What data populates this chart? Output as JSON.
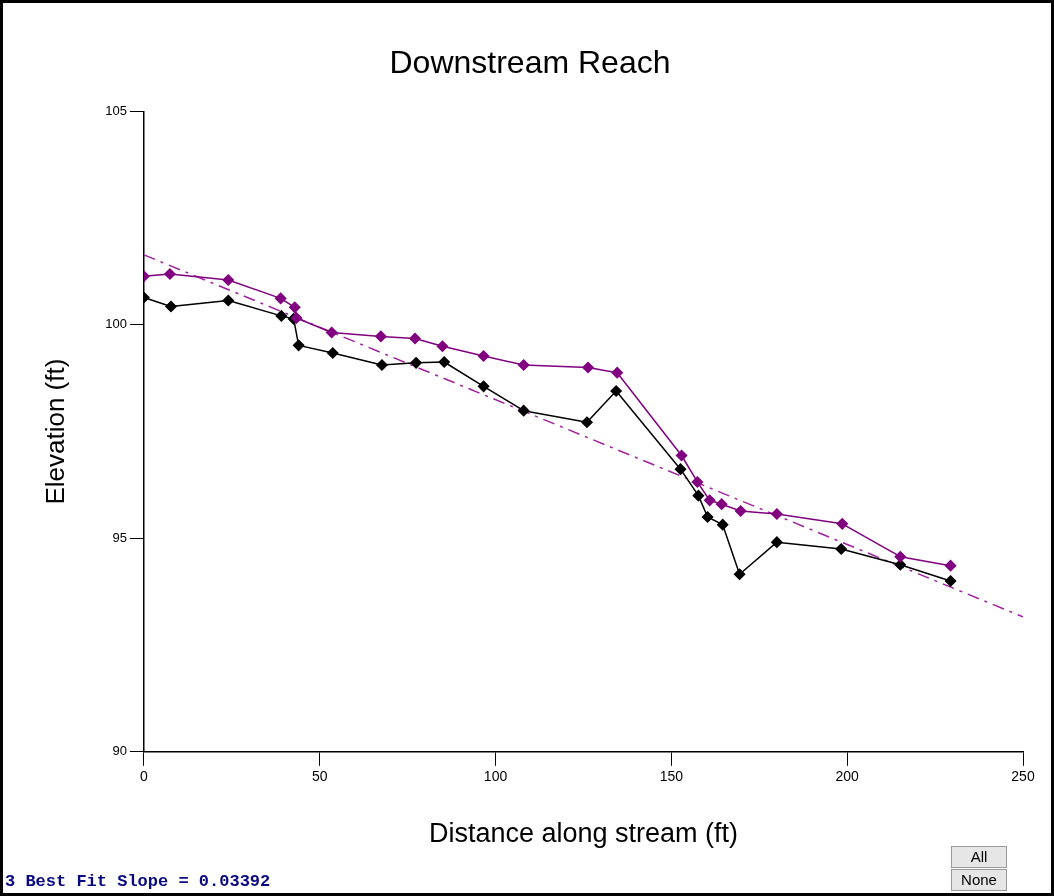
{
  "chart_data": {
    "type": "line",
    "title": "Downstream Reach",
    "xlabel": "Distance along stream (ft)",
    "ylabel": "Elevation (ft)",
    "xlim": [
      0,
      250
    ],
    "xticks": [
      0,
      50,
      100,
      150,
      200,
      250
    ],
    "ylim": [
      90,
      105
    ],
    "yticks": [
      90,
      95,
      100,
      105
    ],
    "grid": false,
    "legend": false,
    "marker": "diamond",
    "line_style": "solid",
    "annotations": [
      "3 Best Fit Slope = 0.03392",
      "All",
      "None"
    ],
    "series": [
      {
        "color": "#800080",
        "x": [
          0,
          7.4,
          24,
          38.9,
          42.9,
          43.4,
          53.4,
          67.4,
          77.1,
          84.9,
          96.6,
          108,
          126.3,
          134.6,
          152.9,
          157.4,
          160.9,
          164.3,
          169.7,
          180,
          198.6,
          215.1,
          229.4
        ],
        "values": [
          101.14,
          101.19,
          101.05,
          100.62,
          100.41,
          100.16,
          99.82,
          99.73,
          99.68,
          99.5,
          99.27,
          99.06,
          99.0,
          98.88,
          96.94,
          96.32,
          95.89,
          95.8,
          95.64,
          95.57,
          95.34,
          94.57,
          94.36
        ]
      },
      {
        "color": "#000000",
        "x": [
          0,
          7.7,
          24,
          39.1,
          42.6,
          44,
          53.7,
          67.7,
          77.4,
          85.4,
          96.6,
          108,
          126,
          134.3,
          152.6,
          157.7,
          160.3,
          164.6,
          169.4,
          180,
          198.3,
          215.1,
          229.4
        ],
        "values": [
          100.64,
          100.43,
          100.57,
          100.21,
          100.14,
          99.52,
          99.34,
          99.06,
          99.11,
          99.13,
          98.56,
          97.99,
          97.72,
          98.45,
          96.62,
          96.0,
          95.5,
          95.32,
          94.16,
          94.91,
          94.75,
          94.38,
          94.0
        ]
      },
      {
        "type": "line",
        "color": "#a020a0",
        "marker": "none",
        "line_style": "dashed",
        "x": [
          0,
          250
        ],
        "values": [
          101.64,
          93.16
        ]
      }
    ]
  }
}
